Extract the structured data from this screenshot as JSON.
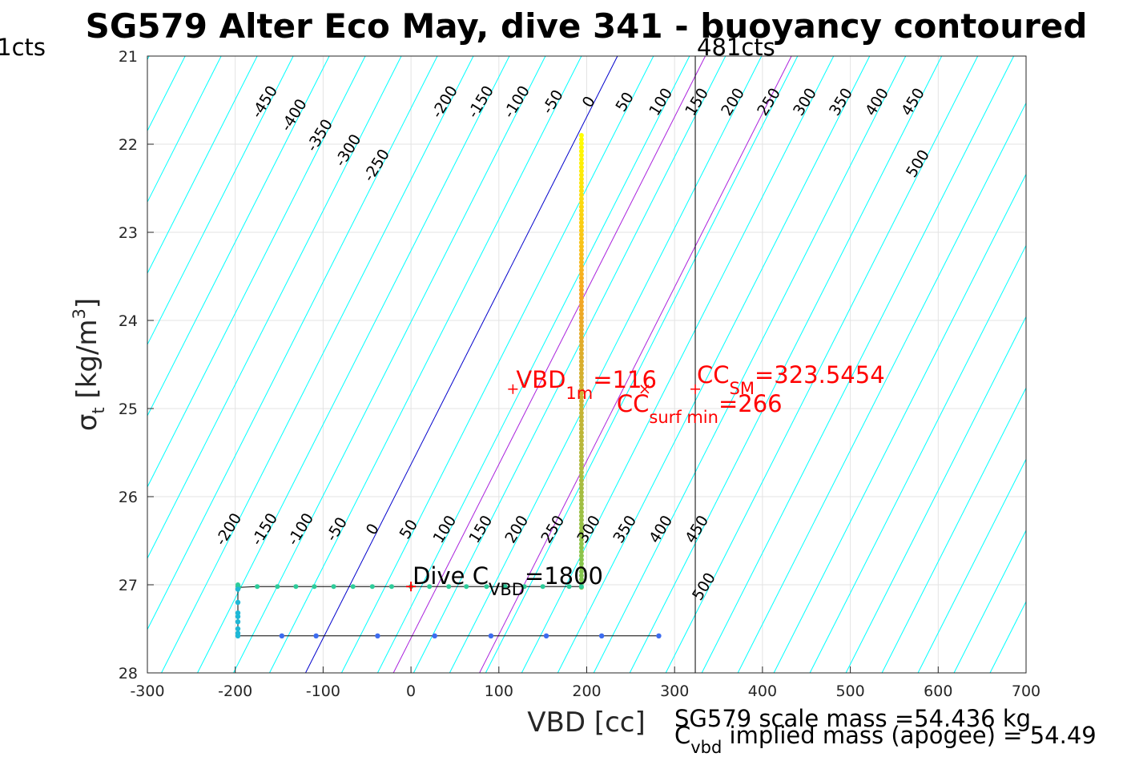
{
  "chart_data": {
    "type": "scatter",
    "title": "SG579 Alter Eco May, dive 341 - buoyancy contoured",
    "xlabel": "VBD [cc]",
    "ylabel": {
      "main": "σ",
      "sub": "t",
      "unit": " [kg/m",
      "sup": "3",
      "close": "]"
    },
    "xlim": [
      -300,
      700
    ],
    "ylim": [
      21,
      28
    ],
    "y_reversed": true,
    "grid": true,
    "xticks": [
      -300,
      -200,
      -100,
      0,
      100,
      200,
      300,
      400,
      500,
      600,
      700
    ],
    "xtick_labels": [
      "-300",
      "-200",
      "-100",
      "0",
      "100",
      "200",
      "300",
      "400",
      "500",
      "600",
      "700"
    ],
    "yticks": [
      21,
      22,
      23,
      24,
      25,
      26,
      27,
      28
    ],
    "ytick_labels": [
      "21",
      "22",
      "23",
      "24",
      "25",
      "26",
      "27",
      "28"
    ],
    "contours": {
      "color": "#00ffff",
      "zero_color": "#0000cc",
      "values": [
        -450,
        -400,
        -350,
        -300,
        -250,
        -200,
        -150,
        -100,
        -50,
        0,
        50,
        100,
        150,
        200,
        250,
        300,
        350,
        400,
        450,
        500
      ],
      "top_labels": [
        "-450",
        "-400",
        "-350",
        "-300",
        "-250",
        "-200",
        "-150",
        "-100",
        "-50",
        "0",
        "50",
        "100",
        "150",
        "200",
        "250",
        "300",
        "350",
        "400",
        "450",
        "500"
      ],
      "bottom_labels": [
        "-200",
        "-150",
        "-100",
        "-50",
        "0",
        "50",
        "100",
        "150",
        "200",
        "250",
        "300",
        "350",
        "400",
        "450",
        "500"
      ]
    },
    "magenta_lines": {
      "color": "#aa22dd",
      "lines": [
        {
          "x_at_28": -20,
          "x_at_21": 335
        },
        {
          "x_at_28": 78,
          "x_at_21": 433
        }
      ]
    },
    "vertical_line": {
      "x": 323.5454,
      "label": "481cts",
      "left_label": "1cts"
    },
    "descent_series": {
      "name": "",
      "x": 194,
      "y_range": [
        21.9,
        27.05
      ],
      "color_top": "#ffff00",
      "color_mid": "#f5a623",
      "color_bottom": "#7ec850"
    },
    "bottom_series": {
      "points": [
        {
          "x": -197,
          "y": 27.0
        },
        {
          "x": -197,
          "y": 27.02
        },
        {
          "x": -196,
          "y": 27.03
        },
        {
          "x": -175,
          "y": 27.02
        },
        {
          "x": -152,
          "y": 27.02
        },
        {
          "x": -131,
          "y": 27.02
        },
        {
          "x": -110,
          "y": 27.02
        },
        {
          "x": -88,
          "y": 27.02
        },
        {
          "x": -66,
          "y": 27.02
        },
        {
          "x": -44,
          "y": 27.02
        },
        {
          "x": -22,
          "y": 27.02
        },
        {
          "x": 0,
          "y": 27.02
        },
        {
          "x": 21,
          "y": 27.02
        },
        {
          "x": 43,
          "y": 27.02
        },
        {
          "x": 63,
          "y": 27.02
        },
        {
          "x": 86,
          "y": 27.02
        },
        {
          "x": 107,
          "y": 27.02
        },
        {
          "x": 129,
          "y": 27.02
        },
        {
          "x": 150,
          "y": 27.02
        },
        {
          "x": 180,
          "y": 27.02
        },
        {
          "x": 194,
          "y": 27.02
        }
      ],
      "color": "#2ecc9a"
    },
    "climb_series": {
      "points": [
        {
          "x": -197,
          "y": 27.05
        },
        {
          "x": -197,
          "y": 27.2
        },
        {
          "x": -197,
          "y": 27.32
        },
        {
          "x": -197,
          "y": 27.36
        },
        {
          "x": -197,
          "y": 27.42
        },
        {
          "x": -197,
          "y": 27.5
        },
        {
          "x": -197,
          "y": 27.55
        },
        {
          "x": -197,
          "y": 27.58
        },
        {
          "x": -147,
          "y": 27.58
        },
        {
          "x": -108,
          "y": 27.58
        },
        {
          "x": -38,
          "y": 27.58
        },
        {
          "x": 27,
          "y": 27.58
        },
        {
          "x": 91,
          "y": 27.58
        },
        {
          "x": 154,
          "y": 27.58
        },
        {
          "x": 217,
          "y": 27.58
        },
        {
          "x": 282,
          "y": 27.58
        }
      ],
      "color_top": "#1fb8d6",
      "color_bottom": "#3d6cf0"
    },
    "annotations": {
      "vbd1m": {
        "x": 116,
        "y": 24.78,
        "pre": "VBD",
        "sub": "1m",
        "post": "=116"
      },
      "ccsm": {
        "x": 323.5454,
        "y": 24.78,
        "pre": "CC",
        "sub": "SM",
        "post": "=323.5454"
      },
      "ccsurf": {
        "x": 266,
        "y": 24.78,
        "pre": "CC",
        "sub": "surf min",
        "post": "=266"
      },
      "dive": {
        "x": 0,
        "y": 27.02,
        "pre": "Dive C",
        "sub": "VBD",
        "post": "=1800"
      }
    }
  },
  "notes": {
    "line1": "SG579 scale mass =54.436 kg",
    "line2_pre": "C",
    "line2_sub": "vbd",
    "line2_post": " implied mass (apogee) = 54.49"
  }
}
